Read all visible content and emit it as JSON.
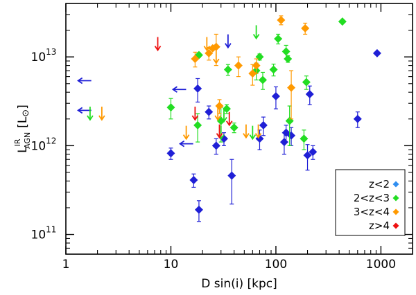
{
  "chart_data": {
    "type": "scatter",
    "title": "",
    "xlabel": "D sin(i) [kpc]",
    "ylabel_main": "L",
    "ylabel_sup": "IR",
    "ylabel_sub": "AGN",
    "ylabel_unit": "[L",
    "ylabel_unit_symbol": "⊙",
    "ylabel_unit_close": "]",
    "x_scale": "log",
    "y_scale": "log",
    "xlim": [
      1,
      2000
    ],
    "ylim": [
      60000000000.0,
      40000000000000.0
    ],
    "x_ticks": [
      {
        "value": 1,
        "label": "1"
      },
      {
        "value": 10,
        "label": "10"
      },
      {
        "value": 100,
        "label": "100"
      },
      {
        "value": 1000,
        "label": "1000"
      }
    ],
    "y_ticks": [
      {
        "value": 100000000000.0,
        "base": "10",
        "exp": "11"
      },
      {
        "value": 1000000000000.0,
        "base": "10",
        "exp": "12"
      },
      {
        "value": 10000000000000.0,
        "base": "10",
        "exp": "13"
      }
    ],
    "legend_position": "bottom-right",
    "series": [
      {
        "name": "z<2",
        "color": "#1f1fd6",
        "legend_color": "#2f8ef0",
        "points": [
          {
            "x": 10,
            "y": 820000000000.0,
            "err": 120000000000.0
          },
          {
            "x": 16.5,
            "y": 410000000000.0,
            "err": 70000000000.0
          },
          {
            "x": 18,
            "y": 4400000000000.0,
            "err": 1300000000000.0
          },
          {
            "x": 18.5,
            "y": 190000000000.0,
            "err": 50000000000.0
          },
          {
            "x": 23,
            "y": 2400000000000.0,
            "err": 400000000000.0
          },
          {
            "x": 27,
            "y": 1000000000000.0,
            "err": 200000000000.0
          },
          {
            "x": 32,
            "y": 1200000000000.0,
            "err": 200000000000.0
          },
          {
            "x": 38,
            "y": 460000000000.0,
            "err": 240000000000.0
          },
          {
            "x": 70,
            "y": 1200000000000.0,
            "err": 300000000000.0
          },
          {
            "x": 76,
            "y": 1700000000000.0,
            "err": 400000000000.0
          },
          {
            "x": 100,
            "y": 3600000000000.0,
            "err": 1000000000000.0
          },
          {
            "x": 120,
            "y": 1100000000000.0,
            "err": 300000000000.0
          },
          {
            "x": 125,
            "y": 1400000000000.0,
            "err": 300000000000.0
          },
          {
            "x": 140,
            "y": 1300000000000.0,
            "err": 300000000000.0
          },
          {
            "x": 200,
            "y": 780000000000.0,
            "err": 250000000000.0
          },
          {
            "x": 210,
            "y": 3800000000000.0,
            "err": 900000000000.0
          },
          {
            "x": 225,
            "y": 850000000000.0,
            "err": 150000000000.0
          },
          {
            "x": 600,
            "y": 2000000000000.0,
            "err": 400000000000.0
          },
          {
            "x": 920,
            "y": 11000000000000.0,
            "err": 0
          }
        ],
        "upper_limits": [
          {
            "x": 35,
            "y": 15000000000000.0
          }
        ],
        "left_limits": [
          {
            "x": 1.5,
            "y": 5400000000000.0
          },
          {
            "x": 1.5,
            "y": 2500000000000.0
          },
          {
            "x": 12,
            "y": 4300000000000.0
          },
          {
            "x": 14,
            "y": 1050000000000.0
          }
        ]
      },
      {
        "name": "2<z<3",
        "color": "#22dd22",
        "legend_color": "#22dd22",
        "points": [
          {
            "x": 10,
            "y": 2700000000000.0,
            "err": 700000000000.0
          },
          {
            "x": 18,
            "y": 1700000000000.0,
            "err": 600000000000.0
          },
          {
            "x": 18.5,
            "y": 10500000000000.0,
            "err": 600000000000.0
          },
          {
            "x": 30,
            "y": 1900000000000.0,
            "err": 800000000000.0
          },
          {
            "x": 34,
            "y": 2600000000000.0,
            "err": 300000000000.0
          },
          {
            "x": 35,
            "y": 7200000000000.0,
            "err": 1000000000000.0
          },
          {
            "x": 40,
            "y": 1600000000000.0,
            "err": 200000000000.0
          },
          {
            "x": 65,
            "y": 7000000000000.0,
            "err": 1500000000000.0
          },
          {
            "x": 70,
            "y": 10000000000000.0,
            "err": 800000000000.0
          },
          {
            "x": 75,
            "y": 5500000000000.0,
            "err": 1200000000000.0
          },
          {
            "x": 95,
            "y": 7200000000000.0,
            "err": 1100000000000.0
          },
          {
            "x": 105,
            "y": 16000000000000.0,
            "err": 2000000000000.0
          },
          {
            "x": 125,
            "y": 11500000000000.0,
            "err": 2000000000000.0
          },
          {
            "x": 130,
            "y": 9500000000000.0,
            "err": 800000000000.0
          },
          {
            "x": 135,
            "y": 1900000000000.0,
            "err": 900000000000.0
          },
          {
            "x": 185,
            "y": 1200000000000.0,
            "err": 300000000000.0
          },
          {
            "x": 195,
            "y": 5200000000000.0,
            "err": 900000000000.0
          },
          {
            "x": 430,
            "y": 25000000000000.0,
            "err": 0
          }
        ],
        "upper_limits": [
          {
            "x": 1.7,
            "y": 2300000000000.0
          },
          {
            "x": 30,
            "y": 1400000000000.0
          },
          {
            "x": 32,
            "y": 2200000000000.0
          },
          {
            "x": 60,
            "y": 1400000000000.0
          },
          {
            "x": 65,
            "y": 19000000000000.0
          }
        ],
        "left_limits": []
      },
      {
        "name": "3<z<4",
        "color": "#ff9900",
        "legend_color": "#ff9900",
        "points": [
          {
            "x": 17,
            "y": 9500000000000.0,
            "err": 1800000000000.0
          },
          {
            "x": 23,
            "y": 11000000000000.0,
            "err": 1800000000000.0
          },
          {
            "x": 25,
            "y": 12500000000000.0,
            "err": 300000000000.0
          },
          {
            "x": 27,
            "y": 13000000000000.0,
            "err": 5000000000000.0
          },
          {
            "x": 29,
            "y": 2800000000000.0,
            "err": 500000000000.0
          },
          {
            "x": 44,
            "y": 8000000000000.0,
            "err": 2000000000000.0
          },
          {
            "x": 60,
            "y": 6500000000000.0,
            "err": 1700000000000.0
          },
          {
            "x": 65,
            "y": 8000000000000.0,
            "err": 1500000000000.0
          },
          {
            "x": 112,
            "y": 26000000000000.0,
            "err": 3000000000000.0
          },
          {
            "x": 140,
            "y": 4500000000000.0,
            "err": 2500000000000.0
          },
          {
            "x": 190,
            "y": 21000000000000.0,
            "err": 3000000000000.0
          }
        ],
        "upper_limits": [
          {
            "x": 2.2,
            "y": 2300000000000.0
          },
          {
            "x": 14,
            "y": 1400000000000.0
          },
          {
            "x": 22,
            "y": 14000000000000.0
          },
          {
            "x": 27,
            "y": 10000000000000.0
          },
          {
            "x": 28,
            "y": 2300000000000.0
          },
          {
            "x": 52,
            "y": 1450000000000.0
          },
          {
            "x": 68,
            "y": 1450000000000.0
          }
        ],
        "left_limits": []
      },
      {
        "name": "z>4",
        "color": "#ee1111",
        "legend_color": "#ee1111",
        "points": [],
        "upper_limits": [
          {
            "x": 7.5,
            "y": 14000000000000.0
          },
          {
            "x": 17,
            "y": 2300000000000.0
          },
          {
            "x": 29,
            "y": 1450000000000.0
          },
          {
            "x": 36,
            "y": 2000000000000.0
          }
        ],
        "left_limits": []
      }
    ]
  }
}
